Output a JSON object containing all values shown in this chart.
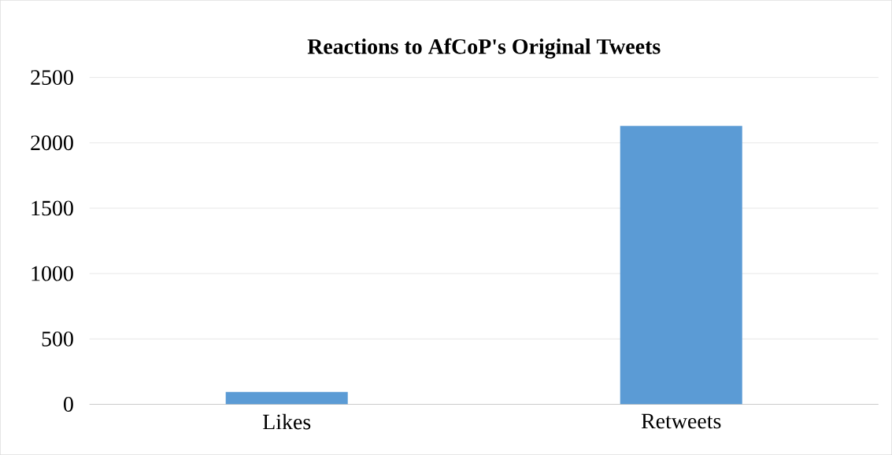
{
  "chart_data": {
    "type": "bar",
    "title": "Reactions to AfCoP's Original Tweets",
    "categories": [
      "Likes",
      "Retweets"
    ],
    "values": [
      95,
      2130
    ],
    "color": "#5b9bd5",
    "ylim": [
      0,
      2500
    ],
    "yticks": [
      0,
      500,
      1000,
      1500,
      2000,
      2500
    ],
    "grid": "y"
  }
}
